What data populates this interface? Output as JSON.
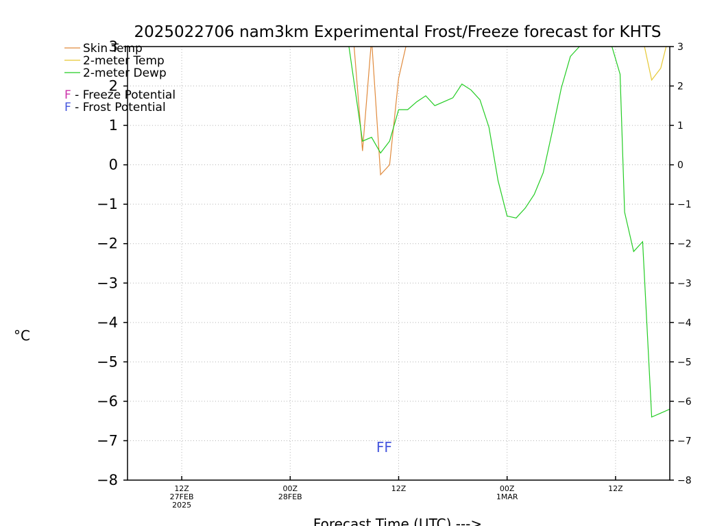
{
  "chart_data": {
    "type": "line",
    "title": "2025022706 nam3km Experimental Frost/Freeze forecast for KHTS",
    "xlabel": "Forecast Time (UTC) --->",
    "ylabel": "°C",
    "ylim": [
      -8,
      3
    ],
    "yticks": [
      -8,
      -7,
      -6,
      -5,
      -4,
      -3,
      -2,
      -1,
      0,
      1,
      2,
      3
    ],
    "grid": true,
    "legend_position": "top-left",
    "x_unit": "forecast hour from 2025-02-27 06Z",
    "xlim": [
      0,
      60
    ],
    "x_ticks": [
      {
        "x": 6,
        "lines": [
          "12Z",
          "27FEB",
          "2025"
        ]
      },
      {
        "x": 18,
        "lines": [
          "00Z",
          "28FEB"
        ]
      },
      {
        "x": 30,
        "lines": [
          "12Z"
        ]
      },
      {
        "x": 42,
        "lines": [
          "00Z",
          "1MAR"
        ]
      },
      {
        "x": 54,
        "lines": [
          "12Z"
        ]
      }
    ],
    "series": [
      {
        "name": "Skin Temp",
        "color": "#e08a3c",
        "x": [
          25.0,
          26.0,
          27.0,
          28.0,
          29.0,
          30.0,
          31.0
        ],
        "y": [
          3.2,
          0.35,
          3.2,
          -0.25,
          0.0,
          2.2,
          3.2
        ]
      },
      {
        "name": "2-meter Temp",
        "color": "#e6c832",
        "x": [
          57.2,
          58.0,
          59.0,
          59.6
        ],
        "y": [
          3.0,
          2.15,
          2.45,
          3.0
        ]
      },
      {
        "name": "2-meter Dewp",
        "color": "#22cc22",
        "x": [
          24.5,
          26.0,
          27.0,
          28.0,
          29.0,
          30.0,
          31.0,
          32.0,
          33.0,
          34.0,
          35.0,
          36.0,
          37.0,
          38.0,
          39.0,
          40.0,
          41.0,
          42.0,
          43.0,
          44.0,
          45.0,
          46.0,
          47.0,
          48.0,
          49.0,
          50.0,
          53.6,
          54.5,
          55.0,
          56.0,
          57.0,
          58.0,
          59.0,
          60.0
        ],
        "y": [
          3.0,
          0.6,
          0.7,
          0.3,
          0.6,
          1.4,
          1.4,
          1.6,
          1.75,
          1.5,
          1.6,
          1.7,
          2.05,
          1.9,
          1.65,
          0.95,
          -0.4,
          -1.3,
          -1.35,
          -1.1,
          -0.75,
          -0.2,
          0.85,
          1.95,
          2.75,
          3.0,
          3.0,
          2.3,
          -1.2,
          -2.2,
          -1.95,
          -6.4,
          -6.3,
          -6.2
        ]
      }
    ],
    "legend": [
      {
        "label": "Skin Temp",
        "color": "#e08a3c"
      },
      {
        "label": "2-meter Temp",
        "color": "#e6c832"
      },
      {
        "label": "2-meter Dewp",
        "color": "#22cc22"
      }
    ],
    "potential_legend": [
      {
        "letter": "F",
        "label": " - Freeze Potential",
        "color": "#cc33aa"
      },
      {
        "letter": "F",
        "label": " - Frost Potential",
        "color": "#4455dd"
      }
    ],
    "markers": [
      {
        "text": "FF",
        "x": 28.4,
        "y": -7.15,
        "color": "#4455dd"
      }
    ]
  }
}
